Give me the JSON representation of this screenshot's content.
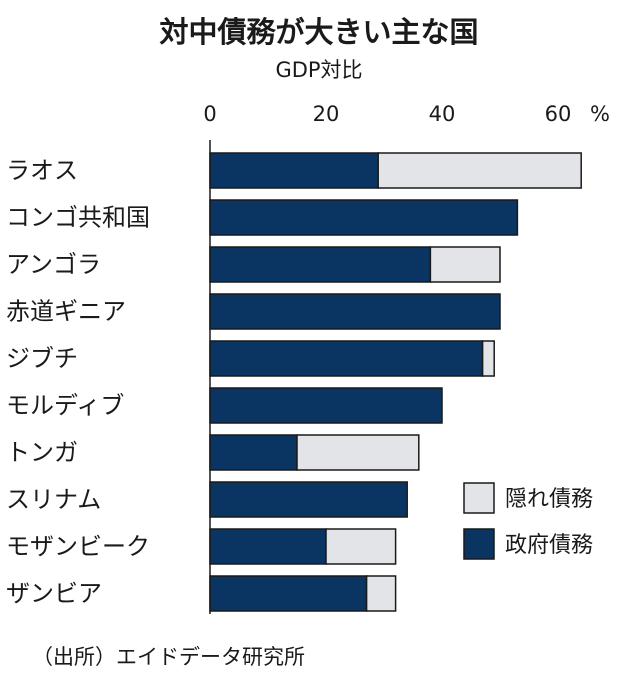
{
  "chart_data": {
    "type": "bar",
    "orientation": "horizontal",
    "stacked": true,
    "title": "対中債務が大きい主な国",
    "subtitle": "GDP対比",
    "unit": "%",
    "xlim": [
      0,
      70
    ],
    "xticks": [
      0,
      20,
      40,
      60
    ],
    "categories": [
      "ラオス",
      "コンゴ共和国",
      "アンゴラ",
      "赤道ギニア",
      "ジブチ",
      "モルディブ",
      "トンガ",
      "スリナム",
      "モザンビーク",
      "ザンビア"
    ],
    "series": [
      {
        "name": "政府債務",
        "color": "#0a3461",
        "values": [
          29,
          53,
          38,
          50,
          47,
          40,
          15,
          34,
          20,
          27
        ]
      },
      {
        "name": "隠れ債務",
        "color": "#e3e4e8",
        "values": [
          35,
          0,
          12,
          0,
          2,
          0,
          21,
          0,
          12,
          5
        ]
      }
    ],
    "legend": {
      "placement": "right",
      "order": [
        "隠れ債務",
        "政府債務"
      ]
    },
    "grid": false,
    "source": "（出所）エイドデータ研究所"
  }
}
